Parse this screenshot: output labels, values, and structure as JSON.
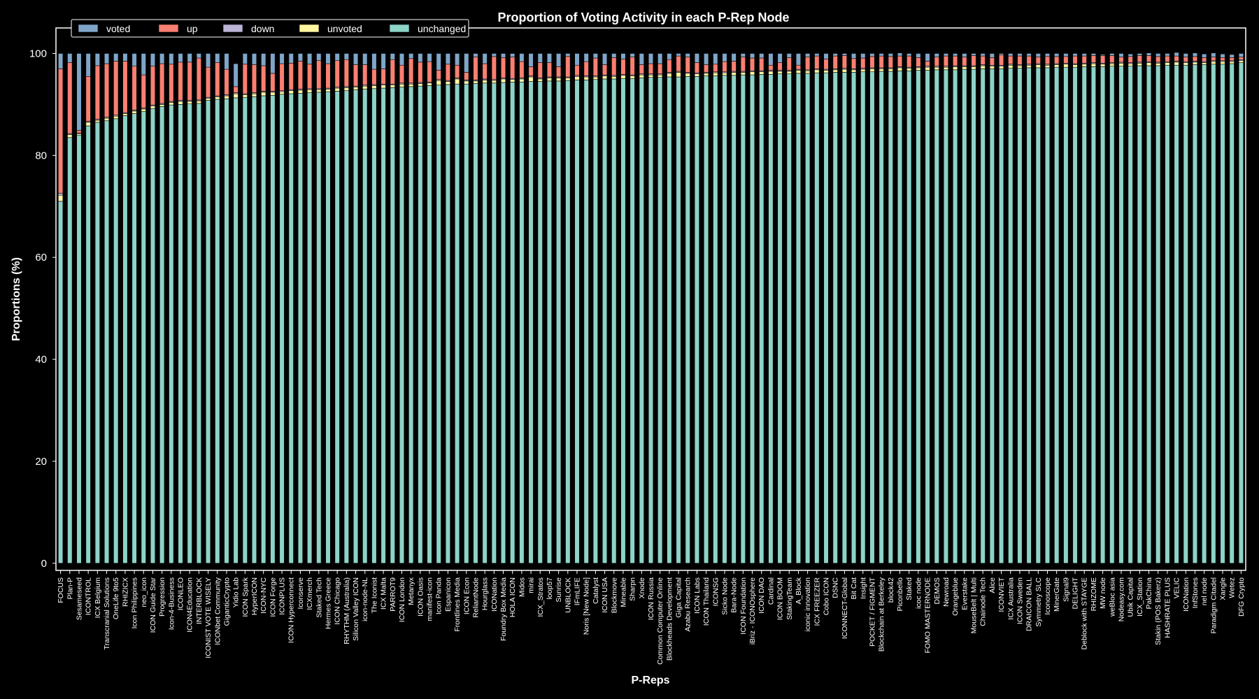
{
  "chart_data": {
    "type": "bar",
    "stacked": true,
    "title": "Proportion of Voting Activity in each P-Rep Node",
    "xlabel": "P-Reps",
    "ylabel": "Proportions (%)",
    "ylim": [
      0,
      100
    ],
    "yticks": [
      0,
      20,
      40,
      60,
      80,
      100
    ],
    "grid": false,
    "legend_position": "top-left",
    "legend": [
      {
        "name": "voted",
        "color": "#7fa6c9"
      },
      {
        "name": "up",
        "color": "#fa8072"
      },
      {
        "name": "down",
        "color": "#bcb4d6"
      },
      {
        "name": "unvoted",
        "color": "#fff6a0"
      },
      {
        "name": "unchanged",
        "color": "#8dd3c7"
      }
    ],
    "categories": [
      "FOCUS",
      "Plan-P",
      "Sesameseed",
      "ICONTROL",
      "ICX Belgium",
      "Transcranial Solutions",
      "OneLife 9to5",
      "RHIZICX",
      "Icon Philippines",
      "neo_icon",
      "ICON Guide Star",
      "Progression",
      "Icon-4-Business",
      "ICONLEO",
      "ICON4Education",
      "INTERBLOCK",
      "ICONIST VOTE WISELY",
      "ICONbet Community",
      "GiganticCrypto",
      "Yidio Lab",
      "ICON Spark",
      "HyperICON",
      "ICON-NYC",
      "ICON Forge",
      "ICONPLUS",
      "ICON Hyperconnect",
      "Iconserve",
      "ICXmerch",
      "Staked Tech",
      "Hermes Greece",
      "ICON Chicago",
      "RHYTHM (Australia)",
      "Silicon Valley ICON",
      "icon-node-NL",
      "The Iconist",
      "ICX Malta",
      "PARROT9",
      "ICON London",
      "Metanyx",
      "ICON Oasis",
      "manifest-icon",
      "Icon Panda",
      "Espanicon",
      "Frontlines Media",
      "ICON Econ",
      "ReliantNode",
      "Hourglass",
      "ICONation",
      "Foundry Box Media",
      "HOLA ICON",
      "Midos",
      "mirai",
      "ICX_Stratos",
      "loop57",
      "Sunrise",
      "UNBLOCK",
      "IFmLIFE",
      "Noris [New Node]",
      "Catalyst",
      "ICON USA",
      "Blockmove",
      "Mineable",
      "Sharpn",
      "Xnode",
      "ICON Russia",
      "Common Computer Online",
      "Blockheads Development",
      "Giga Capital",
      "Azabu Research",
      "ICON Labs",
      "ICON Thailand",
      "ICONSG",
      "Sicko Node",
      "Bara-Node",
      "ICON Foundation",
      "iBriz - ICONOsphere",
      "ICON DAO",
      "Cardinal",
      "ICON BOOM",
      "StakingTeam",
      "A_Block",
      "iconic innovation",
      "ICX FREEZER",
      "Cobo ICON",
      "DSNC",
      "ICONNECT-Global",
      "Bit Cat",
      "Insight",
      "POCKET / FIGMENT",
      "Blockchain at Berkeley",
      "block42",
      "Piconbello",
      "Staked",
      "icoc node",
      "FOMO MASTERNODE",
      "DEMOS",
      "Newroad",
      "Orangeblue",
      "Everstake",
      "MouseBelt | Multi",
      "Chainode Tech",
      "Alice",
      "ICONVIET",
      "ICX Australia",
      "ICON Sweden",
      "DRAICON BALL",
      "Symmetry SLC",
      "Iconoscope",
      "MinerGate",
      "Signal9",
      "DELIGHT",
      "Deblock with STAYGE",
      "RHIZOME",
      "MW node",
      "weBloc asia",
      "Nodeasy.com",
      "Ubik Capital",
      "ICX_Station",
      "PakChina",
      "Stakin (POS Bakerz)",
      "HASHRATE PLUS",
      "VELIC",
      "ICONation",
      "InfStones",
      "nel node",
      "Paradigm Citadel",
      "Xangle",
      "Wetez",
      "DFG Crypto"
    ],
    "series": [
      {
        "name": "unchanged",
        "values": [
          71.0,
          83.5,
          84.0,
          85.8,
          86.5,
          86.8,
          87.2,
          87.8,
          88.2,
          88.6,
          89.2,
          89.6,
          89.9,
          90.0,
          90.1,
          90.2,
          90.8,
          91.0,
          91.1,
          91.3,
          91.4,
          91.5,
          91.7,
          91.8,
          92.0,
          92.1,
          92.2,
          92.3,
          92.4,
          92.5,
          92.6,
          92.7,
          92.9,
          93.0,
          93.1,
          93.2,
          93.3,
          93.4,
          93.5,
          93.6,
          93.7,
          93.8,
          93.9,
          94.0,
          94.0,
          94.1,
          94.2,
          94.2,
          94.3,
          94.4,
          94.4,
          94.5,
          94.5,
          94.6,
          94.6,
          94.7,
          94.8,
          94.8,
          94.9,
          95.0,
          95.0,
          95.1,
          95.1,
          95.2,
          95.3,
          95.3,
          95.4,
          95.4,
          95.5,
          95.5,
          95.6,
          95.6,
          95.7,
          95.7,
          95.8,
          95.8,
          95.9,
          95.9,
          96.0,
          96.0,
          96.1,
          96.1,
          96.2,
          96.2,
          96.3,
          96.3,
          96.3,
          96.4,
          96.4,
          96.5,
          96.5,
          96.6,
          96.6,
          96.7,
          96.7,
          96.8,
          96.8,
          96.8,
          96.9,
          96.9,
          97.0,
          97.0,
          97.0,
          97.1,
          97.1,
          97.2,
          97.2,
          97.2,
          97.3,
          97.3,
          97.3,
          97.4,
          97.4,
          97.4,
          97.5,
          97.5,
          97.5,
          97.6,
          97.6,
          97.6,
          97.7,
          97.7,
          97.7,
          97.8,
          97.8,
          97.9,
          97.9,
          98.0,
          98.2
        ],
        "color": "#8dd3c7"
      },
      {
        "name": "unvoted",
        "values": [
          1.2,
          0.6,
          0.3,
          0.7,
          0.4,
          0.5,
          0.5,
          0.4,
          0.5,
          0.5,
          0.5,
          0.4,
          0.5,
          0.6,
          0.5,
          0.5,
          0.4,
          0.5,
          0.6,
          0.8,
          0.5,
          0.6,
          0.7,
          0.6,
          0.5,
          0.6,
          0.6,
          0.6,
          0.5,
          0.5,
          0.6,
          0.6,
          0.5,
          0.6,
          0.6,
          0.6,
          0.5,
          0.6,
          0.5,
          0.5,
          0.5,
          0.9,
          0.6,
          1.0,
          0.6,
          0.5,
          0.6,
          0.5,
          0.7,
          0.5,
          0.6,
          0.9,
          0.5,
          0.6,
          0.6,
          0.5,
          0.7,
          0.6,
          0.5,
          0.6,
          0.5,
          0.6,
          0.5,
          0.6,
          0.5,
          0.5,
          0.7,
          0.9,
          0.6,
          0.5,
          0.5,
          0.6,
          0.5,
          0.6,
          0.5,
          0.6,
          0.5,
          0.6,
          0.5,
          0.5,
          0.6,
          0.5,
          0.6,
          0.5,
          0.5,
          0.6,
          0.5,
          0.5,
          0.6,
          0.5,
          0.5,
          0.6,
          0.5,
          0.5,
          0.6,
          0.5,
          0.5,
          0.6,
          0.5,
          0.5,
          0.6,
          0.5,
          0.5,
          0.6,
          0.5,
          0.5,
          0.6,
          0.5,
          0.5,
          0.6,
          0.5,
          0.5,
          0.6,
          0.5,
          0.5,
          0.6,
          0.5,
          0.5,
          0.6,
          0.5,
          0.5,
          0.6,
          0.5,
          0.5,
          0.4,
          0.5,
          0.5,
          0.4,
          0.4
        ],
        "color": "#fff6a0"
      },
      {
        "name": "down",
        "values": [
          0.4,
          0.2,
          0.1,
          0.2,
          0.2,
          0.2,
          0.2,
          0.2,
          0.2,
          0.2,
          0.2,
          0.2,
          0.2,
          0.2,
          0.2,
          0.2,
          0.2,
          0.2,
          0.2,
          0.2,
          0.2,
          0.2,
          0.2,
          0.2,
          0.2,
          0.2,
          0.2,
          0.2,
          0.2,
          0.2,
          0.2,
          0.2,
          0.2,
          0.2,
          0.2,
          0.2,
          0.2,
          0.2,
          0.2,
          0.2,
          0.2,
          0.2,
          0.2,
          0.2,
          0.2,
          0.2,
          0.2,
          0.2,
          0.2,
          0.2,
          0.2,
          0.2,
          0.2,
          0.2,
          0.2,
          0.2,
          0.2,
          0.2,
          0.2,
          0.2,
          0.2,
          0.2,
          0.2,
          0.2,
          0.2,
          0.2,
          0.2,
          0.2,
          0.2,
          0.2,
          0.2,
          0.2,
          0.2,
          0.2,
          0.2,
          0.2,
          0.2,
          0.2,
          0.2,
          0.2,
          0.2,
          0.2,
          0.2,
          0.2,
          0.2,
          0.2,
          0.2,
          0.2,
          0.2,
          0.2,
          0.2,
          0.2,
          0.2,
          0.2,
          0.2,
          0.2,
          0.2,
          0.2,
          0.2,
          0.2,
          0.2,
          0.2,
          0.2,
          0.2,
          0.2,
          0.2,
          0.2,
          0.2,
          0.2,
          0.2,
          0.2,
          0.2,
          0.2,
          0.2,
          0.2,
          0.2,
          0.2,
          0.2,
          0.2,
          0.2,
          0.2,
          0.2,
          0.2,
          0.2,
          0.2,
          0.2,
          0.2,
          0.2,
          0.2
        ],
        "color": "#bcb4d6"
      },
      {
        "name": "up",
        "values": [
          24.4,
          13.9,
          0.5,
          8.8,
          10.5,
          10.5,
          10.6,
          10.1,
          8.6,
          6.5,
          7.6,
          7.8,
          7.3,
          7.5,
          7.5,
          8.2,
          5.9,
          6.5,
          5.0,
          1.2,
          5.8,
          5.5,
          5.0,
          3.5,
          5.3,
          5.2,
          5.5,
          4.8,
          5.5,
          4.8,
          5.2,
          5.3,
          4.2,
          4.0,
          3.0,
          3.0,
          4.8,
          3.5,
          4.8,
          4.0,
          4.0,
          1.8,
          3.2,
          2.5,
          1.5,
          4.5,
          3.0,
          4.5,
          4.0,
          4.2,
          3.2,
          1.8,
          3.0,
          2.8,
          2.0,
          4.0,
          2.0,
          2.8,
          3.5,
          2.0,
          3.5,
          3.0,
          3.5,
          1.8,
          2.0,
          2.0,
          2.5,
          3.0,
          3.0,
          2.0,
          1.5,
          1.5,
          2.0,
          2.0,
          2.8,
          2.5,
          2.5,
          1.0,
          1.5,
          2.5,
          0.8,
          2.5,
          2.5,
          2.0,
          2.5,
          2.5,
          2.0,
          2.0,
          2.2,
          2.3,
          2.2,
          2.1,
          2.2,
          1.8,
          1.0,
          1.8,
          2.0,
          1.9,
          1.7,
          2.0,
          1.7,
          1.5,
          2.0,
          1.6,
          1.7,
          1.6,
          1.3,
          1.5,
          1.4,
          1.3,
          1.5,
          1.4,
          1.4,
          1.5,
          1.4,
          1.0,
          1.2,
          1.3,
          1.2,
          1.1,
          1.1,
          1.0,
          0.9,
          0.9,
          0.8,
          0.7,
          0.6,
          0.6,
          0.5
        ],
        "color": "#fa8072"
      },
      {
        "name": "voted",
        "values": [
          3.0,
          1.8,
          15.1,
          4.5,
          2.4,
          2.0,
          1.5,
          1.5,
          2.5,
          4.2,
          2.5,
          2.0,
          2.1,
          1.7,
          1.7,
          0.9,
          2.7,
          1.8,
          3.1,
          4.5,
          2.1,
          2.2,
          2.4,
          3.9,
          2.0,
          1.9,
          1.5,
          2.1,
          1.4,
          2.0,
          1.4,
          1.2,
          2.2,
          2.2,
          3.1,
          3.0,
          1.2,
          2.3,
          1.0,
          1.7,
          1.6,
          3.3,
          2.1,
          2.3,
          3.7,
          0.7,
          2.0,
          0.6,
          0.8,
          0.7,
          1.6,
          2.6,
          1.8,
          1.8,
          2.6,
          0.6,
          2.3,
          1.6,
          0.9,
          2.2,
          0.8,
          1.1,
          0.7,
          2.2,
          2.0,
          2.0,
          1.2,
          0.5,
          0.7,
          1.8,
          2.2,
          2.1,
          1.6,
          1.5,
          0.7,
          0.9,
          0.9,
          2.3,
          1.8,
          0.8,
          2.3,
          0.7,
          0.5,
          1.1,
          0.5,
          0.4,
          1.0,
          0.9,
          0.6,
          0.5,
          0.6,
          0.6,
          0.5,
          0.8,
          1.5,
          0.7,
          0.5,
          0.5,
          0.7,
          0.4,
          0.5,
          0.8,
          0.3,
          0.5,
          0.5,
          0.5,
          0.7,
          0.6,
          0.6,
          0.6,
          0.5,
          0.5,
          0.4,
          0.2,
          0.4,
          0.7,
          0.5,
          0.4,
          0.5,
          0.6,
          0.5,
          0.7,
          0.7,
          0.7,
          0.7,
          0.8,
          0.7,
          0.6,
          0.7
        ],
        "color": "#7fa6c9"
      }
    ]
  }
}
